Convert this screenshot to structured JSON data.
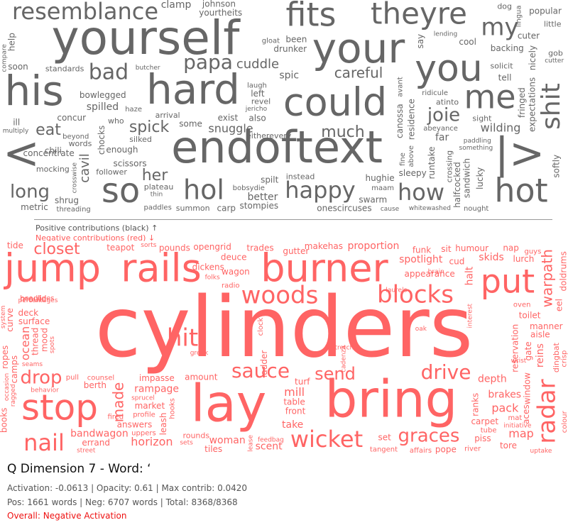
{
  "colors": {
    "positive_words": "#666666",
    "negative_words": "#ff6464",
    "divider": "#999999",
    "overall_text": "#ee1111"
  },
  "chart_data": [
    {
      "type": "wordcloud",
      "title": "",
      "series": "positive",
      "words": [
        [
          "yourself",
          66
        ],
        [
          "his",
          58
        ],
        [
          "hard",
          58
        ],
        [
          "could",
          54
        ],
        [
          "your",
          58
        ],
        [
          "you",
          52
        ],
        [
          "<",
          62
        ],
        [
          "endoftext",
          62
        ],
        [
          "|>",
          60
        ],
        [
          "me",
          46
        ],
        [
          "fits",
          46
        ],
        [
          "theyre",
          42
        ],
        [
          "resemblance",
          32
        ],
        [
          "my",
          34
        ],
        [
          "shit",
          36
        ],
        [
          "hot",
          46
        ],
        [
          "so",
          48
        ],
        [
          "hol",
          38
        ],
        [
          "happy",
          32
        ],
        [
          "how",
          32
        ],
        [
          "long",
          26
        ],
        [
          "bad",
          30
        ],
        [
          "papa",
          28
        ],
        [
          "joie",
          26
        ],
        [
          "much",
          22
        ],
        [
          "eat",
          22
        ],
        [
          "spick",
          22
        ],
        [
          "careful",
          20
        ],
        [
          "wilding",
          16
        ],
        [
          "cavil",
          18
        ],
        [
          "her",
          22
        ],
        [
          "cuddle",
          18
        ],
        [
          "snuggle",
          16
        ],
        [
          "spic",
          14
        ],
        [
          "sandwich",
          12
        ],
        [
          "johnson",
          12
        ],
        [
          "chili",
          12
        ],
        [
          "also",
          12
        ],
        [
          "nicely",
          12
        ],
        [
          "scissors",
          12
        ],
        [
          "better",
          14
        ],
        [
          "spilt",
          12
        ],
        [
          "tell",
          12
        ],
        [
          "far",
          14
        ],
        [
          "shrug",
          12
        ],
        [
          "carp",
          12
        ],
        [
          "enough",
          12
        ],
        [
          "clamp",
          14
        ],
        [
          "stompies",
          12
        ],
        [
          "hughie",
          12
        ],
        [
          "backing",
          12
        ],
        [
          "popular",
          12
        ],
        [
          "chocks",
          12
        ],
        [
          "metric",
          12
        ],
        [
          "canossa",
          12
        ],
        [
          "softly",
          12
        ],
        [
          "instead",
          11
        ],
        [
          "lucky",
          12
        ],
        [
          "cool",
          12
        ],
        [
          "cuter",
          12
        ],
        [
          "dog",
          11
        ],
        [
          "who",
          11
        ],
        [
          "plateau",
          11
        ],
        [
          "arrival",
          11
        ],
        [
          "little",
          11
        ],
        [
          "crossing",
          11
        ],
        [
          "ill",
          12
        ],
        [
          "some",
          12
        ],
        [
          "gob",
          11
        ],
        [
          "been",
          12
        ],
        [
          "left",
          12
        ],
        [
          "residence",
          12
        ],
        [
          "bowlegged",
          12
        ],
        [
          "help",
          12
        ],
        [
          "onescircuses",
          12
        ],
        [
          "say",
          12
        ],
        [
          "spilled",
          14
        ],
        [
          "drunker",
          12
        ],
        [
          "solicit",
          11
        ],
        [
          "beyond",
          10
        ],
        [
          "follower",
          11
        ],
        [
          "abeyance",
          10
        ],
        [
          "atinto",
          11
        ],
        [
          "mocking",
          11
        ],
        [
          "eitherevery",
          11
        ],
        [
          "summon",
          11
        ],
        [
          "paddles",
          10
        ],
        [
          "runtake",
          12
        ],
        [
          "sight",
          11
        ],
        [
          "standards",
          11
        ],
        [
          "swarm",
          12
        ],
        [
          "silked",
          11
        ],
        [
          "words",
          11
        ],
        [
          "laugh",
          10
        ],
        [
          "concur",
          12
        ],
        [
          "expectations",
          12
        ],
        [
          "concentrate",
          12
        ],
        [
          "exist",
          12
        ],
        [
          "yourtheits",
          12
        ],
        [
          "revel",
          11
        ],
        [
          "soon",
          12
        ],
        [
          "nought",
          10
        ],
        [
          "avant",
          10
        ],
        [
          "bobsydie",
          10
        ],
        [
          "above",
          10
        ],
        [
          "halfcocked",
          12
        ],
        [
          "sleepy",
          12
        ],
        [
          "maam",
          10
        ],
        [
          "haze",
          10
        ],
        [
          "fringed",
          12
        ],
        [
          "gloat",
          10
        ],
        [
          "fine",
          10
        ],
        [
          "ridicule",
          10
        ],
        [
          "butcher",
          9
        ],
        [
          "lingua",
          10
        ],
        [
          "lending",
          9
        ],
        [
          "crosswise",
          9
        ],
        [
          "something",
          9
        ],
        [
          "multiply",
          9
        ],
        [
          "threading",
          10
        ],
        [
          "compare",
          9
        ],
        [
          "thin",
          9
        ],
        [
          "whitewashed",
          9
        ],
        [
          "jericho",
          9
        ],
        [
          "paddling",
          9
        ],
        [
          "cause",
          9
        ],
        [
          "cutter",
          9
        ]
      ]
    },
    {
      "type": "wordcloud",
      "title": "",
      "series": "negative",
      "words": [
        [
          "cylinders",
          118
        ],
        [
          "lay",
          72
        ],
        [
          "bring",
          72
        ],
        [
          "jump",
          54
        ],
        [
          "rails",
          54
        ],
        [
          "burner",
          54
        ],
        [
          "put",
          46
        ],
        [
          "stop",
          50
        ],
        [
          "woods",
          34
        ],
        [
          "blocks",
          34
        ],
        [
          "hit",
          34
        ],
        [
          "radar",
          34
        ],
        [
          "nail",
          32
        ],
        [
          "wicket",
          32
        ],
        [
          "sauce",
          28
        ],
        [
          "drive",
          28
        ],
        [
          "drop",
          26
        ],
        [
          "graces",
          26
        ],
        [
          "send",
          24
        ],
        [
          "closet",
          22
        ],
        [
          "made",
          20
        ],
        [
          "warpath",
          20
        ],
        [
          "horizon",
          16
        ],
        [
          "ocean",
          16
        ],
        [
          "spotlight",
          14
        ],
        [
          "proportion",
          14
        ],
        [
          "piss",
          12
        ],
        [
          "manner",
          12
        ],
        [
          "curve",
          12
        ],
        [
          "pack",
          16
        ],
        [
          "skids",
          14
        ],
        [
          "rampage",
          14
        ],
        [
          "mill",
          16
        ],
        [
          "table",
          12
        ],
        [
          "teapot",
          12
        ],
        [
          "window",
          12
        ],
        [
          "depth",
          14
        ],
        [
          "leash",
          12
        ],
        [
          "reins",
          14
        ],
        [
          "tide",
          12
        ],
        [
          "berth",
          12
        ],
        [
          "mould",
          12
        ],
        [
          "nap",
          12
        ],
        [
          "books",
          12
        ],
        [
          "aces",
          12
        ],
        [
          "eel",
          12
        ],
        [
          "dingbat",
          11
        ],
        [
          "aisle",
          12
        ],
        [
          "appearance",
          12
        ],
        [
          "carpet",
          12
        ],
        [
          "toilet",
          12
        ],
        [
          "brakes",
          14
        ],
        [
          "tiles",
          12
        ],
        [
          "answers",
          12
        ],
        [
          "tangent",
          10
        ],
        [
          "crisp",
          10
        ],
        [
          "tube",
          10
        ],
        [
          "deck",
          12
        ],
        [
          "opengrid",
          12
        ],
        [
          "scent",
          14
        ],
        [
          "doldrums",
          12
        ],
        [
          "errand",
          12
        ],
        [
          "camps",
          12
        ],
        [
          "trades",
          12
        ],
        [
          "mood",
          12
        ],
        [
          "tore",
          12
        ],
        [
          "rounds",
          11
        ],
        [
          "makehas",
          12
        ],
        [
          "woman",
          14
        ],
        [
          "thread",
          12
        ],
        [
          "turf",
          12
        ],
        [
          "market",
          12
        ],
        [
          "sit",
          12
        ],
        [
          "river",
          10
        ],
        [
          "gate",
          12
        ],
        [
          "impasse",
          12
        ],
        [
          "wagon",
          12
        ],
        [
          "reservation",
          12
        ],
        [
          "amount",
          12
        ],
        [
          "ladder",
          12
        ],
        [
          "take",
          14
        ],
        [
          "front",
          12
        ],
        [
          "ropes",
          12
        ],
        [
          "ranks",
          12
        ],
        [
          "pounds",
          12
        ],
        [
          "gutter",
          12
        ],
        [
          "map",
          16
        ],
        [
          "halt",
          14
        ],
        [
          "funk",
          12
        ],
        [
          "pope",
          12
        ],
        [
          "bandwagon",
          14
        ],
        [
          "deuce",
          12
        ],
        [
          "lurch",
          12
        ],
        [
          "dickens",
          12
        ],
        [
          "humour",
          12
        ],
        [
          "cud",
          12
        ],
        [
          "guys",
          10
        ],
        [
          "uppers",
          10
        ],
        [
          "affairs",
          10
        ],
        [
          "mat",
          10
        ],
        [
          "radio",
          10
        ],
        [
          "oven",
          10
        ],
        [
          "headlines",
          10
        ],
        [
          "surface",
          12
        ],
        [
          "feedbag",
          9
        ],
        [
          "behavior",
          9
        ],
        [
          "seams",
          9
        ],
        [
          "fired",
          10
        ],
        [
          "clock",
          10
        ],
        [
          "greek",
          9
        ],
        [
          "laurels",
          9
        ],
        [
          "percentages",
          9
        ],
        [
          "street",
          9
        ],
        [
          "occasion",
          9
        ],
        [
          "hooks",
          10
        ],
        [
          "sprucel",
          9
        ],
        [
          "initiative",
          9
        ],
        [
          "system",
          9
        ],
        [
          "ragged",
          9
        ],
        [
          "uptake",
          9
        ],
        [
          "brain",
          9
        ],
        [
          "sorts",
          9
        ],
        [
          "stretch",
          9
        ],
        [
          "wrist",
          9
        ],
        [
          "oak",
          9
        ],
        [
          "lease",
          9
        ],
        [
          "sets",
          9
        ],
        [
          "interest",
          9
        ],
        [
          "spots",
          9
        ],
        [
          "folks",
          9
        ],
        [
          "cadenza",
          9
        ],
        [
          "set",
          12
        ],
        [
          "pull",
          10
        ],
        [
          "profile",
          10
        ],
        [
          "colour",
          10
        ],
        [
          "counsel",
          10
        ]
      ]
    }
  ],
  "legend": {
    "positive": "Positive contributions (black) ↑",
    "negative": "Negative contributions (red) ↓"
  },
  "info": {
    "title": "Q Dimension 7 - Word: ‘",
    "line1": "Activation: -0.0613 | Opacity: 0.61 | Max contrib: 0.0420",
    "line2": "Pos: 1661 words | Neg: 6707 words | Total: 8368/8368",
    "line3": "Overall: Negative Activation"
  }
}
